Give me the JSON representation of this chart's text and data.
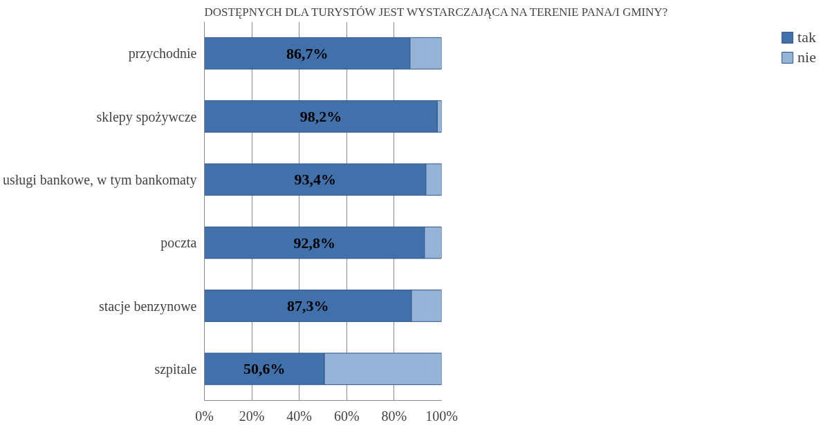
{
  "chart_data": {
    "type": "bar",
    "orientation": "horizontal",
    "stacked": true,
    "title": "DOSTĘPNYCH DLA TURYSTÓW JEST WYSTARCZAJĄCA NA TERENIE PANA/I GMINY?",
    "categories": [
      "przychodnie",
      "sklepy spożywcze",
      "usługi bankowe, w tym bankomaty",
      "poczta",
      "stacje benzynowe",
      "szpitale"
    ],
    "series": [
      {
        "name": "tak",
        "color": "#4270aa",
        "values": [
          86.7,
          98.2,
          93.4,
          92.8,
          87.3,
          50.6
        ],
        "value_labels": [
          "86,7%",
          "98,2%",
          "93,4%",
          "92,8%",
          "87,3%",
          "50,6%"
        ]
      },
      {
        "name": "nie",
        "color": "#95b3d7",
        "values": [
          13.3,
          1.8,
          6.6,
          7.2,
          12.7,
          49.4
        ]
      }
    ],
    "xlim": [
      0,
      100
    ],
    "xticks": [
      {
        "value": 0,
        "label": "0%"
      },
      {
        "value": 20,
        "label": "20%"
      },
      {
        "value": 40,
        "label": "40%"
      },
      {
        "value": 60,
        "label": "60%"
      },
      {
        "value": 80,
        "label": "80%"
      },
      {
        "value": 100,
        "label": "100%"
      }
    ],
    "grid": "x",
    "legend": "right"
  }
}
